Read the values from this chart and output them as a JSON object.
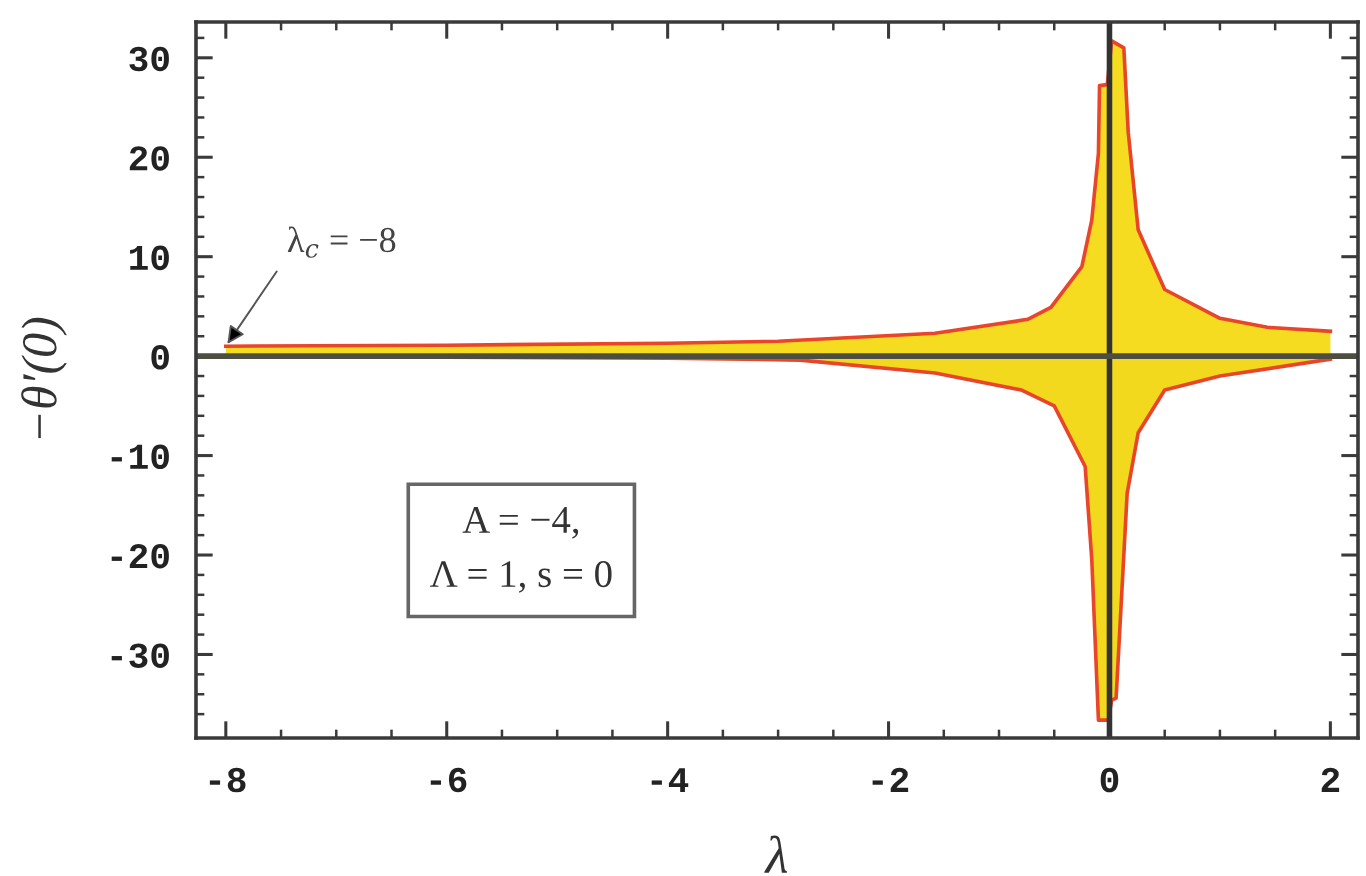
{
  "chart_data": {
    "type": "area",
    "xlabel": "λ",
    "ylabel": "−θ′(0)",
    "xlim": [
      -8.27,
      2.25
    ],
    "ylim": [
      -38.4,
      33.6
    ],
    "xticks": [
      -8,
      {
        "value": -7.5,
        "label": null
      },
      {
        "value": -7,
        "label": null
      },
      {
        "value": -6.5,
        "label": null
      },
      -6,
      {
        "value": -5.5,
        "label": null
      },
      {
        "value": -5,
        "label": null
      },
      {
        "value": -4.5,
        "label": null
      },
      -4,
      {
        "value": -3.5,
        "label": null
      },
      {
        "value": -3,
        "label": null
      },
      {
        "value": -2.5,
        "label": null
      },
      -2,
      {
        "value": -1.5,
        "label": null
      },
      {
        "value": -1,
        "label": null
      },
      {
        "value": -0.5,
        "label": null
      },
      0,
      {
        "value": 0.5,
        "label": null
      },
      {
        "value": 1,
        "label": null
      },
      {
        "value": 1.5,
        "label": null
      },
      2
    ],
    "yticks": [
      {
        "value": -36,
        "label": null
      },
      {
        "value": -34,
        "label": null
      },
      {
        "value": -32,
        "label": null
      },
      -30,
      {
        "value": -28,
        "label": null
      },
      {
        "value": -26,
        "label": null
      },
      {
        "value": -24,
        "label": null
      },
      {
        "value": -22,
        "label": null
      },
      -20,
      {
        "value": -18,
        "label": null
      },
      {
        "value": -16,
        "label": null
      },
      {
        "value": -14,
        "label": null
      },
      {
        "value": -12,
        "label": null
      },
      -10,
      {
        "value": -8,
        "label": null
      },
      {
        "value": -6,
        "label": null
      },
      {
        "value": -4,
        "label": null
      },
      {
        "value": -2,
        "label": null
      },
      0,
      {
        "value": 2,
        "label": null
      },
      {
        "value": 4,
        "label": null
      },
      {
        "value": 6,
        "label": null
      },
      {
        "value": 8,
        "label": null
      },
      10,
      {
        "value": 12,
        "label": null
      },
      {
        "value": 14,
        "label": null
      },
      {
        "value": 16,
        "label": null
      },
      {
        "value": 18,
        "label": null
      },
      20,
      {
        "value": 22,
        "label": null
      },
      {
        "value": 24,
        "label": null
      },
      {
        "value": 26,
        "label": null
      },
      {
        "value": 28,
        "label": null
      },
      30,
      {
        "value": 32,
        "label": null
      }
    ],
    "series": [
      {
        "color": "#f5dc20",
        "x": [
          -8,
          -6,
          -4,
          -3,
          -1.58,
          -0.74,
          -0.53,
          -0.25,
          -0.16,
          -0.1,
          -0.09,
          -0.02,
          0.02,
          0.13,
          0.17,
          0.26,
          0.5,
          1.0,
          1.43,
          2.0
        ],
        "values": [
          1.0,
          1.1,
          1.3,
          1.5,
          2.3,
          3.7,
          4.9,
          9.0,
          13.7,
          20.4,
          27.2,
          27.3,
          31.7,
          31.0,
          22.5,
          12.7,
          6.7,
          3.8,
          2.9,
          2.5
        ]
      },
      {
        "color": "#f2d91e",
        "x": [
          -8,
          -6,
          -4,
          -2.8,
          -1.58,
          -0.8,
          -0.5,
          -0.22,
          -0.16,
          -0.1,
          -0.01,
          0.02,
          0.06,
          0.16,
          0.26,
          0.5,
          1.0,
          2.0
        ],
        "values": [
          0.0,
          -0.1,
          -0.2,
          -0.4,
          -1.7,
          -3.4,
          -5.0,
          -11.1,
          -20.5,
          -36.6,
          -36.6,
          -34.6,
          -34.4,
          -13.8,
          -7.7,
          -3.4,
          -2.0,
          -0.3
        ]
      }
    ],
    "ref_lines": [
      {
        "axis": "x",
        "value": 0,
        "color": "#333333"
      },
      {
        "axis": "y",
        "value": 0,
        "color": "#4d4d40"
      }
    ],
    "annotations": [
      {
        "text": "λ$_{c}$ = −8",
        "x": -8,
        "y": 1.0
      },
      "A = −4,\nΛ = 1, s = 0"
    ]
  }
}
